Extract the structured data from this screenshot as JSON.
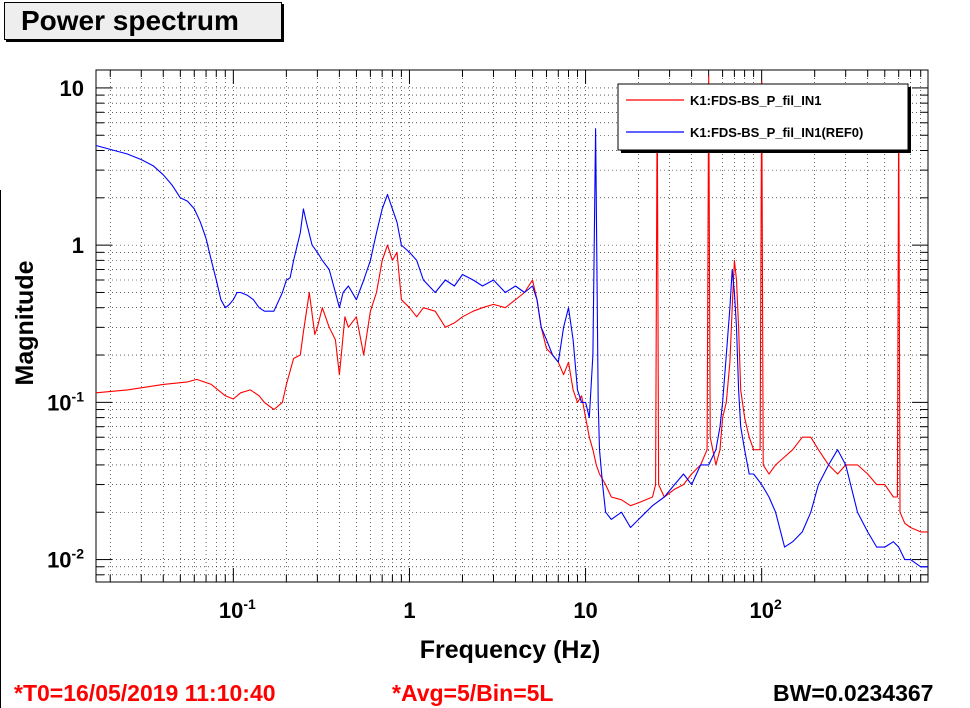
{
  "title": "Power spectrum",
  "chart_data": {
    "type": "line",
    "xlabel": "Frequency (Hz)",
    "ylabel": "Magnitude",
    "xscale": "log",
    "yscale": "log",
    "xlim": [
      0.0166,
      880
    ],
    "ylim": [
      0.0072,
      13
    ],
    "grid": true,
    "legend_position": "top-right",
    "x_tick_labels": [
      {
        "value": 0.1,
        "base": "10",
        "exp": "-1"
      },
      {
        "value": 1,
        "base": "1",
        "exp": ""
      },
      {
        "value": 10,
        "base": "10",
        "exp": ""
      },
      {
        "value": 100,
        "base": "10",
        "exp": "2"
      }
    ],
    "y_tick_labels": [
      {
        "value": 10,
        "base": "10",
        "exp": ""
      },
      {
        "value": 1,
        "base": "1",
        "exp": ""
      },
      {
        "value": 0.1,
        "base": "10",
        "exp": "-1"
      },
      {
        "value": 0.01,
        "base": "10",
        "exp": "-2"
      }
    ],
    "series": [
      {
        "name": "K1:FDS-BS_P_fil_IN1",
        "color": "#ff0000",
        "x": [
          0.0166,
          0.025,
          0.04,
          0.055,
          0.062,
          0.075,
          0.09,
          0.1,
          0.11,
          0.125,
          0.14,
          0.15,
          0.17,
          0.19,
          0.2,
          0.22,
          0.24,
          0.25,
          0.27,
          0.29,
          0.3,
          0.32,
          0.35,
          0.38,
          0.4,
          0.43,
          0.45,
          0.5,
          0.55,
          0.6,
          0.65,
          0.7,
          0.75,
          0.8,
          0.85,
          0.9,
          1.0,
          1.1,
          1.2,
          1.4,
          1.6,
          1.8,
          2.0,
          2.3,
          2.6,
          3.0,
          3.5,
          4.0,
          4.5,
          5.0,
          5.3,
          5.6,
          6.0,
          6.5,
          7.0,
          7.5,
          8.0,
          8.5,
          9.0,
          9.5,
          10.0,
          10.5,
          11.0,
          11.5,
          12.0,
          13.0,
          14.0,
          16.0,
          18.0,
          20.0,
          22.0,
          24.0,
          25.0,
          25.5,
          26.0,
          28.0,
          32.0,
          36.0,
          40.0,
          45.0,
          49.0,
          50.0,
          51.0,
          55.0,
          58.0,
          60.0,
          63.0,
          66.0,
          68.0,
          70.0,
          72.0,
          74.0,
          76.0,
          80.0,
          85.0,
          90.0,
          98.0,
          100.0,
          102.0,
          110.0,
          120.0,
          135.0,
          150.0,
          170.0,
          190.0,
          210.0,
          240.0,
          270.0,
          300.0,
          350.0,
          400.0,
          450.0,
          500.0,
          560.0,
          590.0,
          600.0,
          610.0,
          650.0,
          700.0,
          800.0,
          880.0
        ],
        "y": [
          0.115,
          0.12,
          0.13,
          0.135,
          0.14,
          0.13,
          0.11,
          0.105,
          0.115,
          0.12,
          0.11,
          0.1,
          0.09,
          0.1,
          0.13,
          0.19,
          0.2,
          0.28,
          0.5,
          0.27,
          0.3,
          0.4,
          0.3,
          0.25,
          0.15,
          0.35,
          0.3,
          0.35,
          0.2,
          0.38,
          0.5,
          0.8,
          1.0,
          0.8,
          0.9,
          0.45,
          0.4,
          0.35,
          0.4,
          0.38,
          0.3,
          0.32,
          0.35,
          0.38,
          0.4,
          0.42,
          0.4,
          0.45,
          0.5,
          0.6,
          0.45,
          0.3,
          0.22,
          0.2,
          0.18,
          0.15,
          0.18,
          0.12,
          0.1,
          0.11,
          0.08,
          0.06,
          0.05,
          0.04,
          0.035,
          0.03,
          0.025,
          0.024,
          0.022,
          0.023,
          0.024,
          0.025,
          0.03,
          10,
          0.03,
          0.025,
          0.028,
          0.03,
          0.035,
          0.04,
          0.05,
          12,
          0.06,
          0.04,
          0.05,
          0.08,
          0.1,
          0.18,
          0.4,
          0.8,
          0.6,
          0.3,
          0.12,
          0.08,
          0.06,
          0.05,
          0.05,
          11,
          0.04,
          0.035,
          0.04,
          0.045,
          0.05,
          0.06,
          0.06,
          0.05,
          0.04,
          0.035,
          0.04,
          0.04,
          0.035,
          0.03,
          0.03,
          0.025,
          0.025,
          8,
          0.02,
          0.017,
          0.016,
          0.015,
          0.015
        ]
      },
      {
        "name": "K1:FDS-BS_P_fil_IN1(REF0)",
        "color": "#0000ff",
        "x": [
          0.0166,
          0.025,
          0.03,
          0.035,
          0.04,
          0.045,
          0.05,
          0.055,
          0.06,
          0.065,
          0.07,
          0.075,
          0.08,
          0.085,
          0.09,
          0.095,
          0.1,
          0.105,
          0.11,
          0.12,
          0.13,
          0.14,
          0.15,
          0.17,
          0.19,
          0.2,
          0.21,
          0.22,
          0.24,
          0.25,
          0.26,
          0.28,
          0.3,
          0.32,
          0.35,
          0.38,
          0.4,
          0.42,
          0.45,
          0.5,
          0.55,
          0.6,
          0.65,
          0.7,
          0.75,
          0.8,
          0.85,
          0.9,
          1.0,
          1.1,
          1.2,
          1.4,
          1.6,
          1.8,
          2.0,
          2.3,
          2.6,
          3.0,
          3.5,
          4.0,
          4.5,
          5.0,
          5.3,
          5.6,
          6.0,
          6.5,
          7.0,
          7.5,
          8.0,
          8.5,
          9.0,
          9.5,
          10.0,
          10.5,
          11.0,
          11.4,
          11.8,
          12.0,
          12.5,
          13.0,
          14.0,
          16.0,
          18.0,
          20.0,
          22.0,
          24.0,
          28.0,
          32.0,
          36.0,
          40.0,
          45.0,
          50.0,
          55.0,
          58.0,
          60.0,
          63.0,
          66.0,
          68.0,
          70.0,
          72.0,
          74.0,
          76.0,
          80.0,
          85.0,
          90.0,
          100.0,
          110.0,
          120.0,
          135.0,
          150.0,
          170.0,
          190.0,
          210.0,
          240.0,
          270.0,
          300.0,
          350.0,
          400.0,
          450.0,
          500.0,
          560.0,
          600.0,
          650.0,
          700.0,
          800.0,
          880.0
        ],
        "y": [
          4.3,
          3.8,
          3.5,
          3.2,
          2.8,
          2.4,
          2.0,
          1.9,
          1.7,
          1.4,
          1.1,
          0.8,
          0.6,
          0.45,
          0.4,
          0.42,
          0.45,
          0.5,
          0.5,
          0.48,
          0.45,
          0.4,
          0.38,
          0.38,
          0.5,
          0.6,
          0.62,
          0.8,
          1.2,
          1.7,
          1.4,
          1.0,
          0.9,
          0.8,
          0.7,
          0.5,
          0.4,
          0.5,
          0.55,
          0.45,
          0.6,
          0.8,
          1.2,
          1.7,
          2.1,
          1.7,
          1.4,
          1.0,
          0.9,
          0.8,
          0.6,
          0.5,
          0.6,
          0.55,
          0.65,
          0.6,
          0.55,
          0.6,
          0.5,
          0.55,
          0.5,
          0.55,
          0.45,
          0.3,
          0.25,
          0.2,
          0.18,
          0.3,
          0.4,
          0.25,
          0.12,
          0.1,
          0.1,
          0.08,
          0.2,
          5.5,
          0.1,
          0.05,
          0.03,
          0.02,
          0.018,
          0.02,
          0.016,
          0.018,
          0.02,
          0.022,
          0.025,
          0.03,
          0.035,
          0.03,
          0.04,
          0.04,
          0.05,
          0.07,
          0.1,
          0.2,
          0.4,
          0.7,
          0.5,
          0.3,
          0.12,
          0.07,
          0.05,
          0.035,
          0.035,
          0.03,
          0.025,
          0.02,
          0.012,
          0.013,
          0.015,
          0.02,
          0.03,
          0.04,
          0.05,
          0.04,
          0.02,
          0.015,
          0.012,
          0.012,
          0.013,
          0.012,
          0.01,
          0.01,
          0.009,
          0.009
        ]
      }
    ]
  },
  "footer": {
    "t0": "*T0=16/05/2019 11:10:40",
    "avg": "*Avg=5/Bin=5L",
    "bw": "BW=0.0234367"
  }
}
